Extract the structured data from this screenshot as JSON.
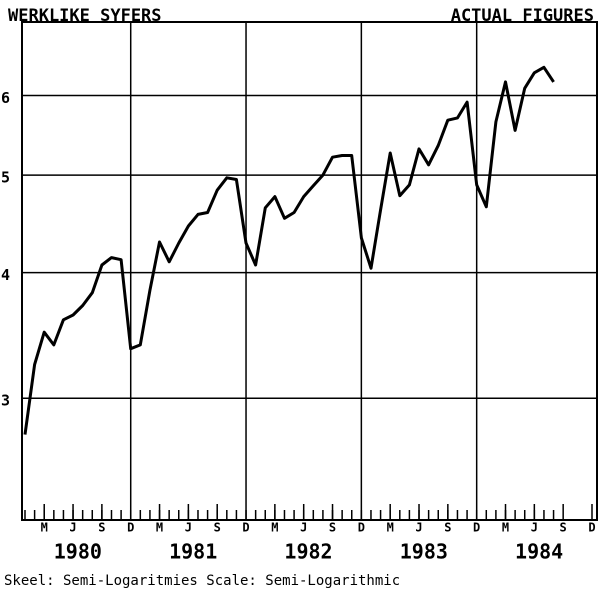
{
  "chart_data": {
    "type": "line",
    "title": "WERKLIKE SYFERS",
    "subtitle": "ACTUAL FIGURES",
    "footer": "Skeel: Semi-Logaritmies Scale: Semi-Logarithmic",
    "log_scale": true,
    "grid": true,
    "x": [
      "1980-01",
      "1980-02",
      "1980-03",
      "1980-04",
      "1980-05",
      "1980-06",
      "1980-07",
      "1980-08",
      "1980-09",
      "1980-10",
      "1980-11",
      "1980-12",
      "1981-01",
      "1981-02",
      "1981-03",
      "1981-04",
      "1981-05",
      "1981-06",
      "1981-07",
      "1981-08",
      "1981-09",
      "1981-10",
      "1981-11",
      "1981-12",
      "1982-01",
      "1982-02",
      "1982-03",
      "1982-04",
      "1982-05",
      "1982-06",
      "1982-07",
      "1982-08",
      "1982-09",
      "1982-10",
      "1982-11",
      "1982-12",
      "1983-01",
      "1983-02",
      "1983-03",
      "1983-04",
      "1983-05",
      "1983-06",
      "1983-07",
      "1983-08",
      "1983-09",
      "1983-10",
      "1983-11",
      "1983-12",
      "1984-01",
      "1984-02",
      "1984-03",
      "1984-04",
      "1984-05",
      "1984-06",
      "1984-07",
      "1984-08"
    ],
    "series": [
      {
        "name": "Actual figures",
        "color": "#000000",
        "values": [
          2.76,
          3.24,
          3.49,
          3.39,
          3.59,
          3.63,
          3.71,
          3.82,
          4.07,
          4.14,
          4.12,
          3.36,
          3.39,
          3.84,
          4.29,
          4.1,
          4.28,
          4.45,
          4.57,
          4.59,
          4.83,
          4.97,
          4.95,
          4.28,
          4.07,
          4.64,
          4.76,
          4.53,
          4.59,
          4.76,
          4.88,
          5.0,
          5.21,
          5.23,
          5.23,
          4.33,
          4.04,
          4.62,
          5.26,
          4.77,
          4.89,
          5.31,
          5.12,
          5.35,
          5.67,
          5.7,
          5.91,
          4.89,
          4.65,
          5.65,
          6.19,
          5.54,
          6.1,
          6.32,
          6.4,
          6.19
        ]
      }
    ],
    "xlim": [
      "1980-01",
      "1984-12"
    ],
    "xticks": [
      {
        "value": "1980-03",
        "label": "M"
      },
      {
        "value": "1980-06",
        "label": "J"
      },
      {
        "value": "1980-09",
        "label": "S"
      },
      {
        "value": "1980-12",
        "label": "D"
      },
      {
        "value": "1981-03",
        "label": "M"
      },
      {
        "value": "1981-06",
        "label": "J"
      },
      {
        "value": "1981-09",
        "label": "S"
      },
      {
        "value": "1981-12",
        "label": "D"
      },
      {
        "value": "1982-03",
        "label": "M"
      },
      {
        "value": "1982-06",
        "label": "J"
      },
      {
        "value": "1982-09",
        "label": "S"
      },
      {
        "value": "1982-12",
        "label": "D"
      },
      {
        "value": "1983-03",
        "label": "M"
      },
      {
        "value": "1983-06",
        "label": "J"
      },
      {
        "value": "1983-09",
        "label": "S"
      },
      {
        "value": "1983-12",
        "label": "D"
      },
      {
        "value": "1984-03",
        "label": "M"
      },
      {
        "value": "1984-06",
        "label": "J"
      },
      {
        "value": "1984-09",
        "label": "S"
      },
      {
        "value": "1984-12",
        "label": "D"
      }
    ],
    "years": [
      "1980",
      "1981",
      "1982",
      "1983",
      "1984"
    ],
    "ylim": [
      2.27,
      7.1
    ],
    "yticks": [
      3,
      4,
      5,
      6
    ]
  }
}
